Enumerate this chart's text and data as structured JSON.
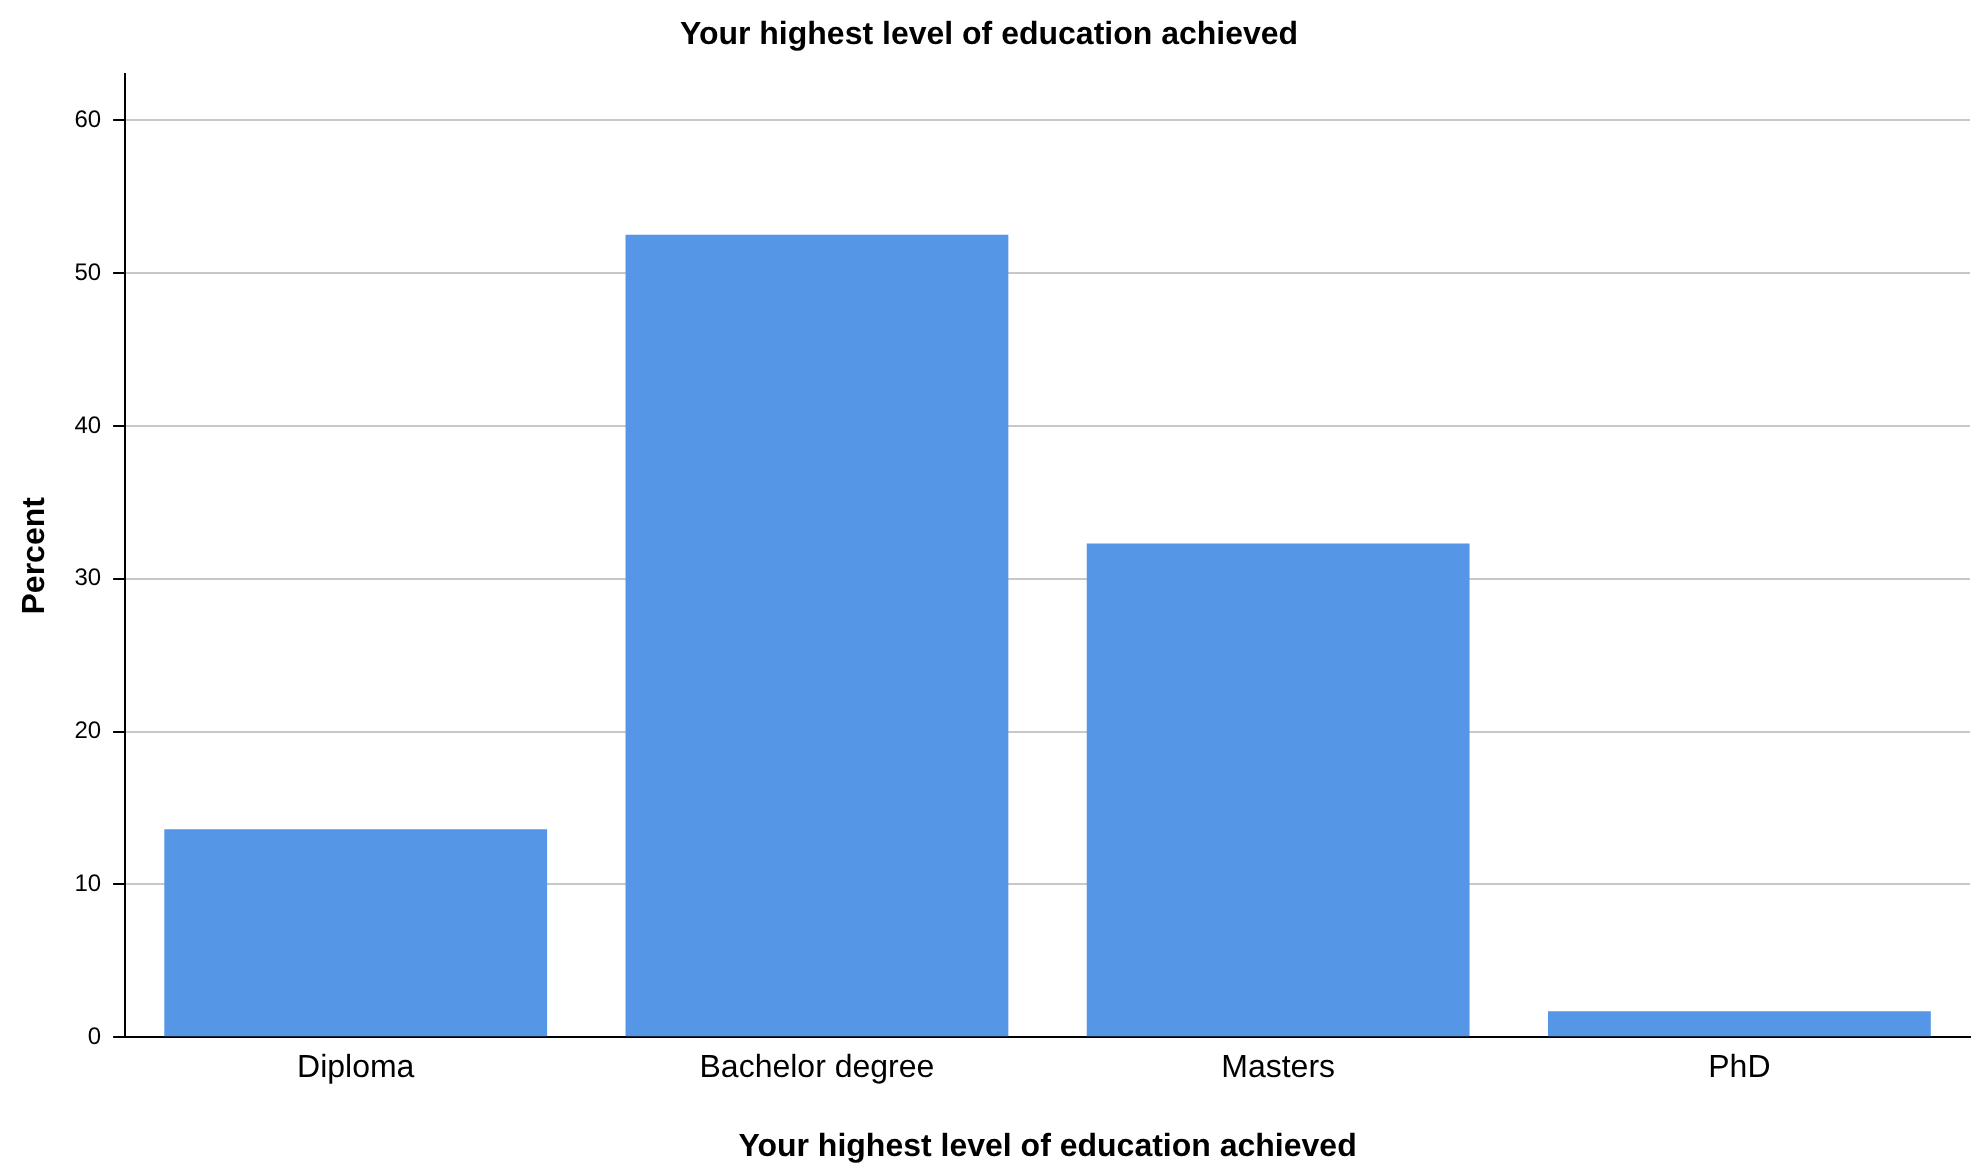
{
  "chart_data": {
    "type": "bar",
    "title": "Your highest level of education achieved",
    "xlabel": "Your highest level of education achieved",
    "ylabel": "Percent",
    "categories": [
      "Diploma",
      "Bachelor degree",
      "Masters",
      "PhD"
    ],
    "values": [
      13.6,
      52.5,
      32.3,
      1.7
    ],
    "color": "#5596e6",
    "ylim": [
      0,
      63
    ],
    "yticks": [
      0,
      10,
      20,
      30,
      40,
      50,
      60
    ],
    "grid": "y",
    "legend": false
  }
}
